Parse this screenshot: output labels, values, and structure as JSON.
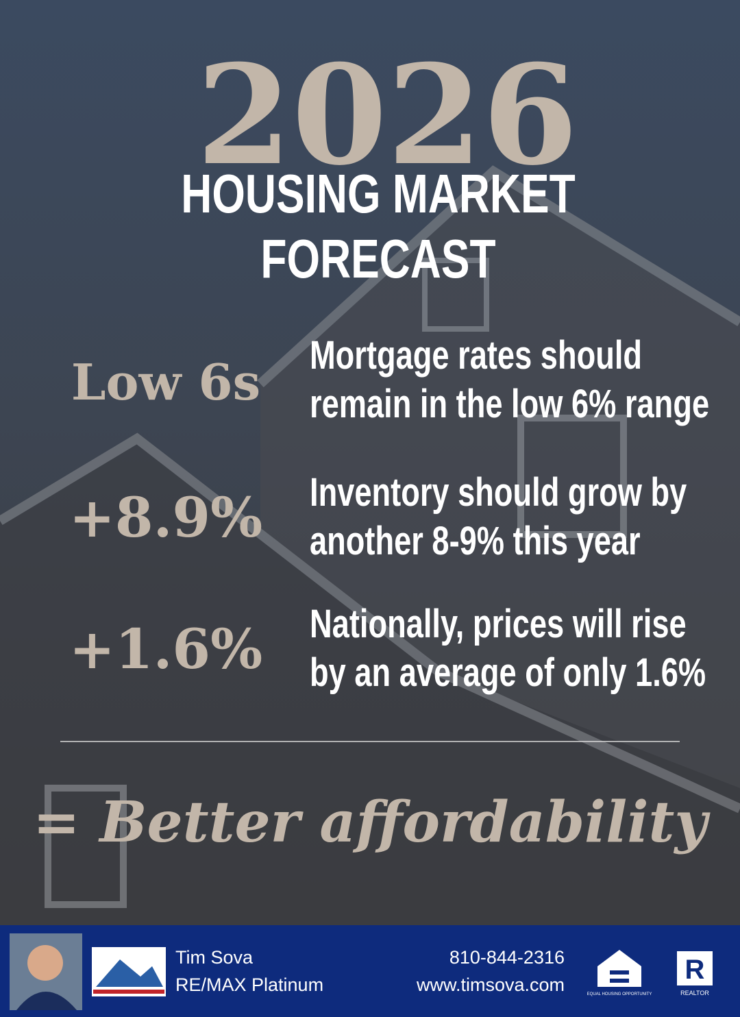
{
  "header": {
    "year": "2026",
    "title_line_1": "HOUSING MARKET",
    "title_line_2": "FORECAST"
  },
  "items": [
    {
      "stat": "Low 6s",
      "lines": [
        "Mortgage rates should",
        "remain in the low 6% range"
      ]
    },
    {
      "stat": "+8.9%",
      "lines": [
        "Inventory should grow by",
        "another 8-9% this year"
      ]
    },
    {
      "stat": "+1.6%",
      "lines": [
        "Nationally, prices will rise",
        "by an average of only 1.6%"
      ]
    }
  ],
  "conclusion": "= Better affordability",
  "footer": {
    "name": "Tim Sova",
    "brokerage": "RE/MAX Platinum",
    "phone": "810-844-2316",
    "website": "www.timsova.com",
    "equal_housing": "EQUAL HOUSING OPPORTUNITY",
    "realtor": "REALTOR"
  }
}
